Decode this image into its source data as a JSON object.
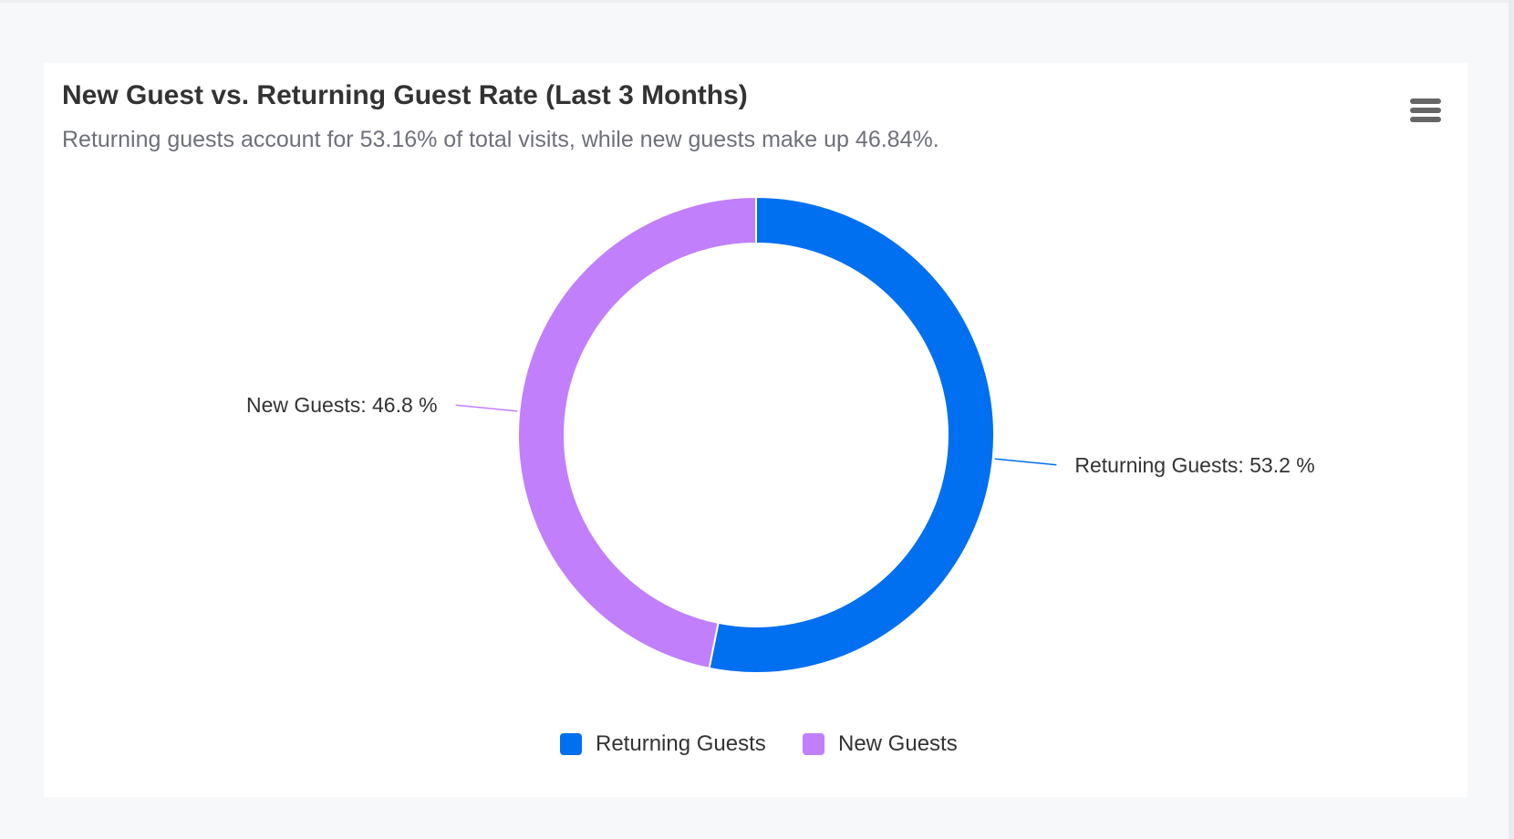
{
  "header": {
    "title": "New Guest vs. Returning Guest Rate (Last 3 Months)",
    "subtitle": "Returning guests account for 53.16% of total visits, while new guests make up 46.84%.",
    "menu_icon": "hamburger-menu-icon"
  },
  "chart_data": {
    "type": "pie",
    "variant": "donut",
    "title": "New Guest vs. Returning Guest Rate (Last 3 Months)",
    "subtitle": "Returning guests account for 53.16% of total visits, while new guests make up 46.84%.",
    "slices": [
      {
        "name": "Returning Guests",
        "value": 53.16,
        "label": "Returning Guests: 53.2 %",
        "color": "#006ff0"
      },
      {
        "name": "New Guests",
        "value": 46.84,
        "label": "New Guests: 46.8 %",
        "color": "#c17ffc"
      }
    ],
    "legend_placement": "bottom"
  },
  "legend": [
    {
      "label": "Returning Guests",
      "color": "#006ff0"
    },
    {
      "label": "New Guests",
      "color": "#c17ffc"
    }
  ]
}
